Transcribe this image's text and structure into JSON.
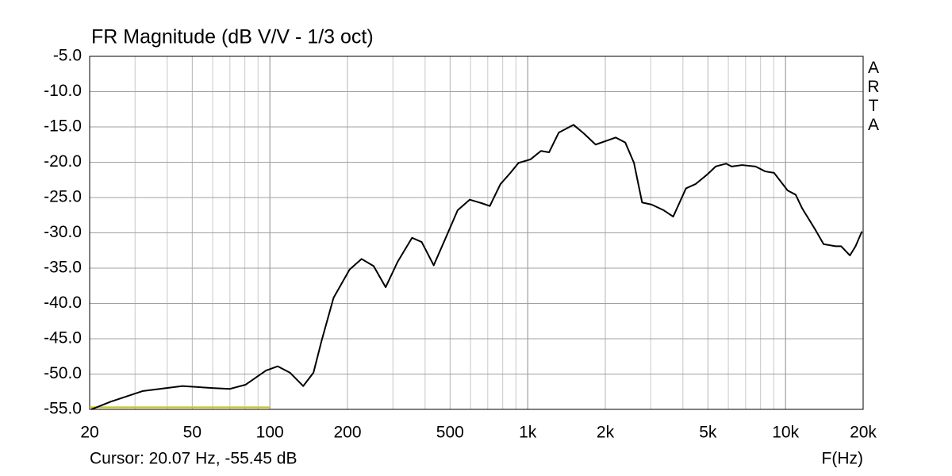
{
  "chart_data": {
    "type": "line",
    "title": "FR Magnitude (dB V/V - 1/3 oct)",
    "watermark": "ARTA",
    "x_label": "F(Hz)",
    "cursor_text": "Cursor: 20.07 Hz, -55.45 dB",
    "log_x": true,
    "grid": true,
    "xlim": [
      20,
      20000
    ],
    "ylim": [
      -55,
      -5
    ],
    "xticks": [
      20,
      50,
      100,
      200,
      500,
      {
        "value": 1000,
        "label": "1k"
      },
      {
        "value": 2000,
        "label": "2k"
      },
      {
        "value": 5000,
        "label": "5k"
      },
      {
        "value": 10000,
        "label": "10k"
      },
      {
        "value": 20000,
        "label": "20k"
      }
    ],
    "x_minor_ticks": [
      30,
      40,
      60,
      70,
      80,
      90,
      300,
      400,
      600,
      700,
      800,
      900,
      3000,
      4000,
      6000,
      7000,
      8000,
      9000
    ],
    "yticks": [
      {
        "value": -5,
        "label": "-5.0"
      },
      {
        "value": -10,
        "label": "-10.0"
      },
      {
        "value": -15,
        "label": "-15.0"
      },
      {
        "value": -20,
        "label": "-20.0"
      },
      {
        "value": -25,
        "label": "-25.0"
      },
      {
        "value": -30,
        "label": "-30.0"
      },
      {
        "value": -35,
        "label": "-35.0"
      },
      {
        "value": -40,
        "label": "-40.0"
      },
      {
        "value": -45,
        "label": "-45.0"
      },
      {
        "value": -50,
        "label": "-50.0"
      },
      {
        "value": -55,
        "label": "-55.0"
      }
    ],
    "series": [
      {
        "color": "#000000",
        "x": [
          20.3,
          24.2,
          32.2,
          45.8,
          60.9,
          70,
          80.6,
          96.6,
          107.3,
          119.6,
          134.7,
          147.6,
          158.7,
          176.6,
          203.8,
          226.9,
          252.6,
          281.2,
          313,
          356,
          388,
          432,
          481,
          535,
          596,
          663,
          713,
          784,
          857,
          921,
          1025,
          1126,
          1210,
          1320,
          1505,
          1648,
          1834,
          2042,
          2195,
          2390,
          2584,
          2778,
          3025,
          3368,
          3667,
          3883,
          4110,
          4474,
          4983,
          5358,
          5876,
          6183,
          6778,
          7657,
          8340,
          9026,
          10190,
          10950,
          11590,
          13070,
          14050,
          15630,
          16430,
          17770,
          18690,
          19780
        ],
        "values": [
          -55,
          -53.9,
          -52.4,
          -51.7,
          -52,
          -52.1,
          -51.5,
          -49.5,
          -48.9,
          -49.8,
          -51.7,
          -49.8,
          -45.3,
          -39.2,
          -35.2,
          -33.7,
          -34.7,
          -37.7,
          -34.1,
          -30.7,
          -31.3,
          -34.6,
          -30.7,
          -26.8,
          -25.3,
          -25.8,
          -26.2,
          -23.1,
          -21.5,
          -20.1,
          -19.6,
          -18.4,
          -18.6,
          -15.8,
          -14.7,
          -15.9,
          -17.5,
          -16.9,
          -16.5,
          -17.2,
          -20.1,
          -25.7,
          -26,
          -26.8,
          -27.7,
          -25.7,
          -23.7,
          -23.1,
          -21.7,
          -20.6,
          -20.2,
          -20.6,
          -20.4,
          -20.6,
          -21.3,
          -21.5,
          -24,
          -24.6,
          -26.5,
          -29.6,
          -31.6,
          -31.9,
          -31.9,
          -33.2,
          -31.9,
          -29.8
        ]
      },
      {
        "color": "#c8c800",
        "x": [
          20,
          100
        ],
        "values": [
          -54.7,
          -54.7
        ]
      }
    ]
  }
}
